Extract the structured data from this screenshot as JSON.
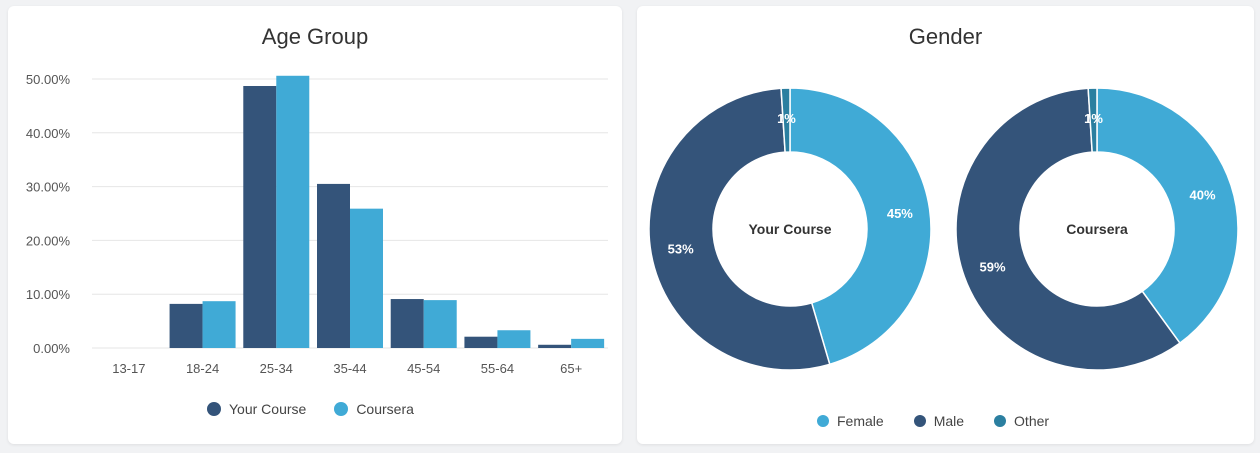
{
  "colors": {
    "your_course": "#34547a",
    "coursera": "#40aad6",
    "female": "#40aad6",
    "male": "#34547a",
    "other": "#2b7fa0",
    "grid": "#e6e6e6"
  },
  "age_card": {
    "title": "Age Group",
    "legend": [
      "Your Course",
      "Coursera"
    ]
  },
  "gender_card": {
    "title": "Gender",
    "legend": [
      "Female",
      "Male",
      "Other"
    ]
  },
  "chart_data": [
    {
      "type": "bar",
      "title": "Age Group",
      "categories": [
        "13-17",
        "18-24",
        "25-34",
        "35-44",
        "45-54",
        "55-64",
        "65+"
      ],
      "series": [
        {
          "name": "Your Course",
          "values": [
            0,
            8.2,
            48.7,
            30.5,
            9.1,
            2.1,
            0.6
          ]
        },
        {
          "name": "Coursera",
          "values": [
            0,
            8.7,
            50.6,
            25.9,
            8.9,
            3.3,
            1.7
          ]
        }
      ],
      "yticks": [
        "0.00%",
        "10.00%",
        "20.00%",
        "30.00%",
        "40.00%",
        "50.00%"
      ],
      "ylim": [
        0,
        50
      ],
      "grid": true,
      "legend_position": "bottom"
    },
    {
      "type": "pie",
      "center_label": "Your Course",
      "slices": [
        {
          "name": "Female",
          "value": 45,
          "label": "45%"
        },
        {
          "name": "Male",
          "value": 53,
          "label": "53%"
        },
        {
          "name": "Other",
          "value": 1,
          "label": "1%"
        }
      ]
    },
    {
      "type": "pie",
      "center_label": "Coursera",
      "slices": [
        {
          "name": "Female",
          "value": 40,
          "label": "40%"
        },
        {
          "name": "Male",
          "value": 59,
          "label": "59%"
        },
        {
          "name": "Other",
          "value": 1,
          "label": "1%"
        }
      ]
    }
  ]
}
